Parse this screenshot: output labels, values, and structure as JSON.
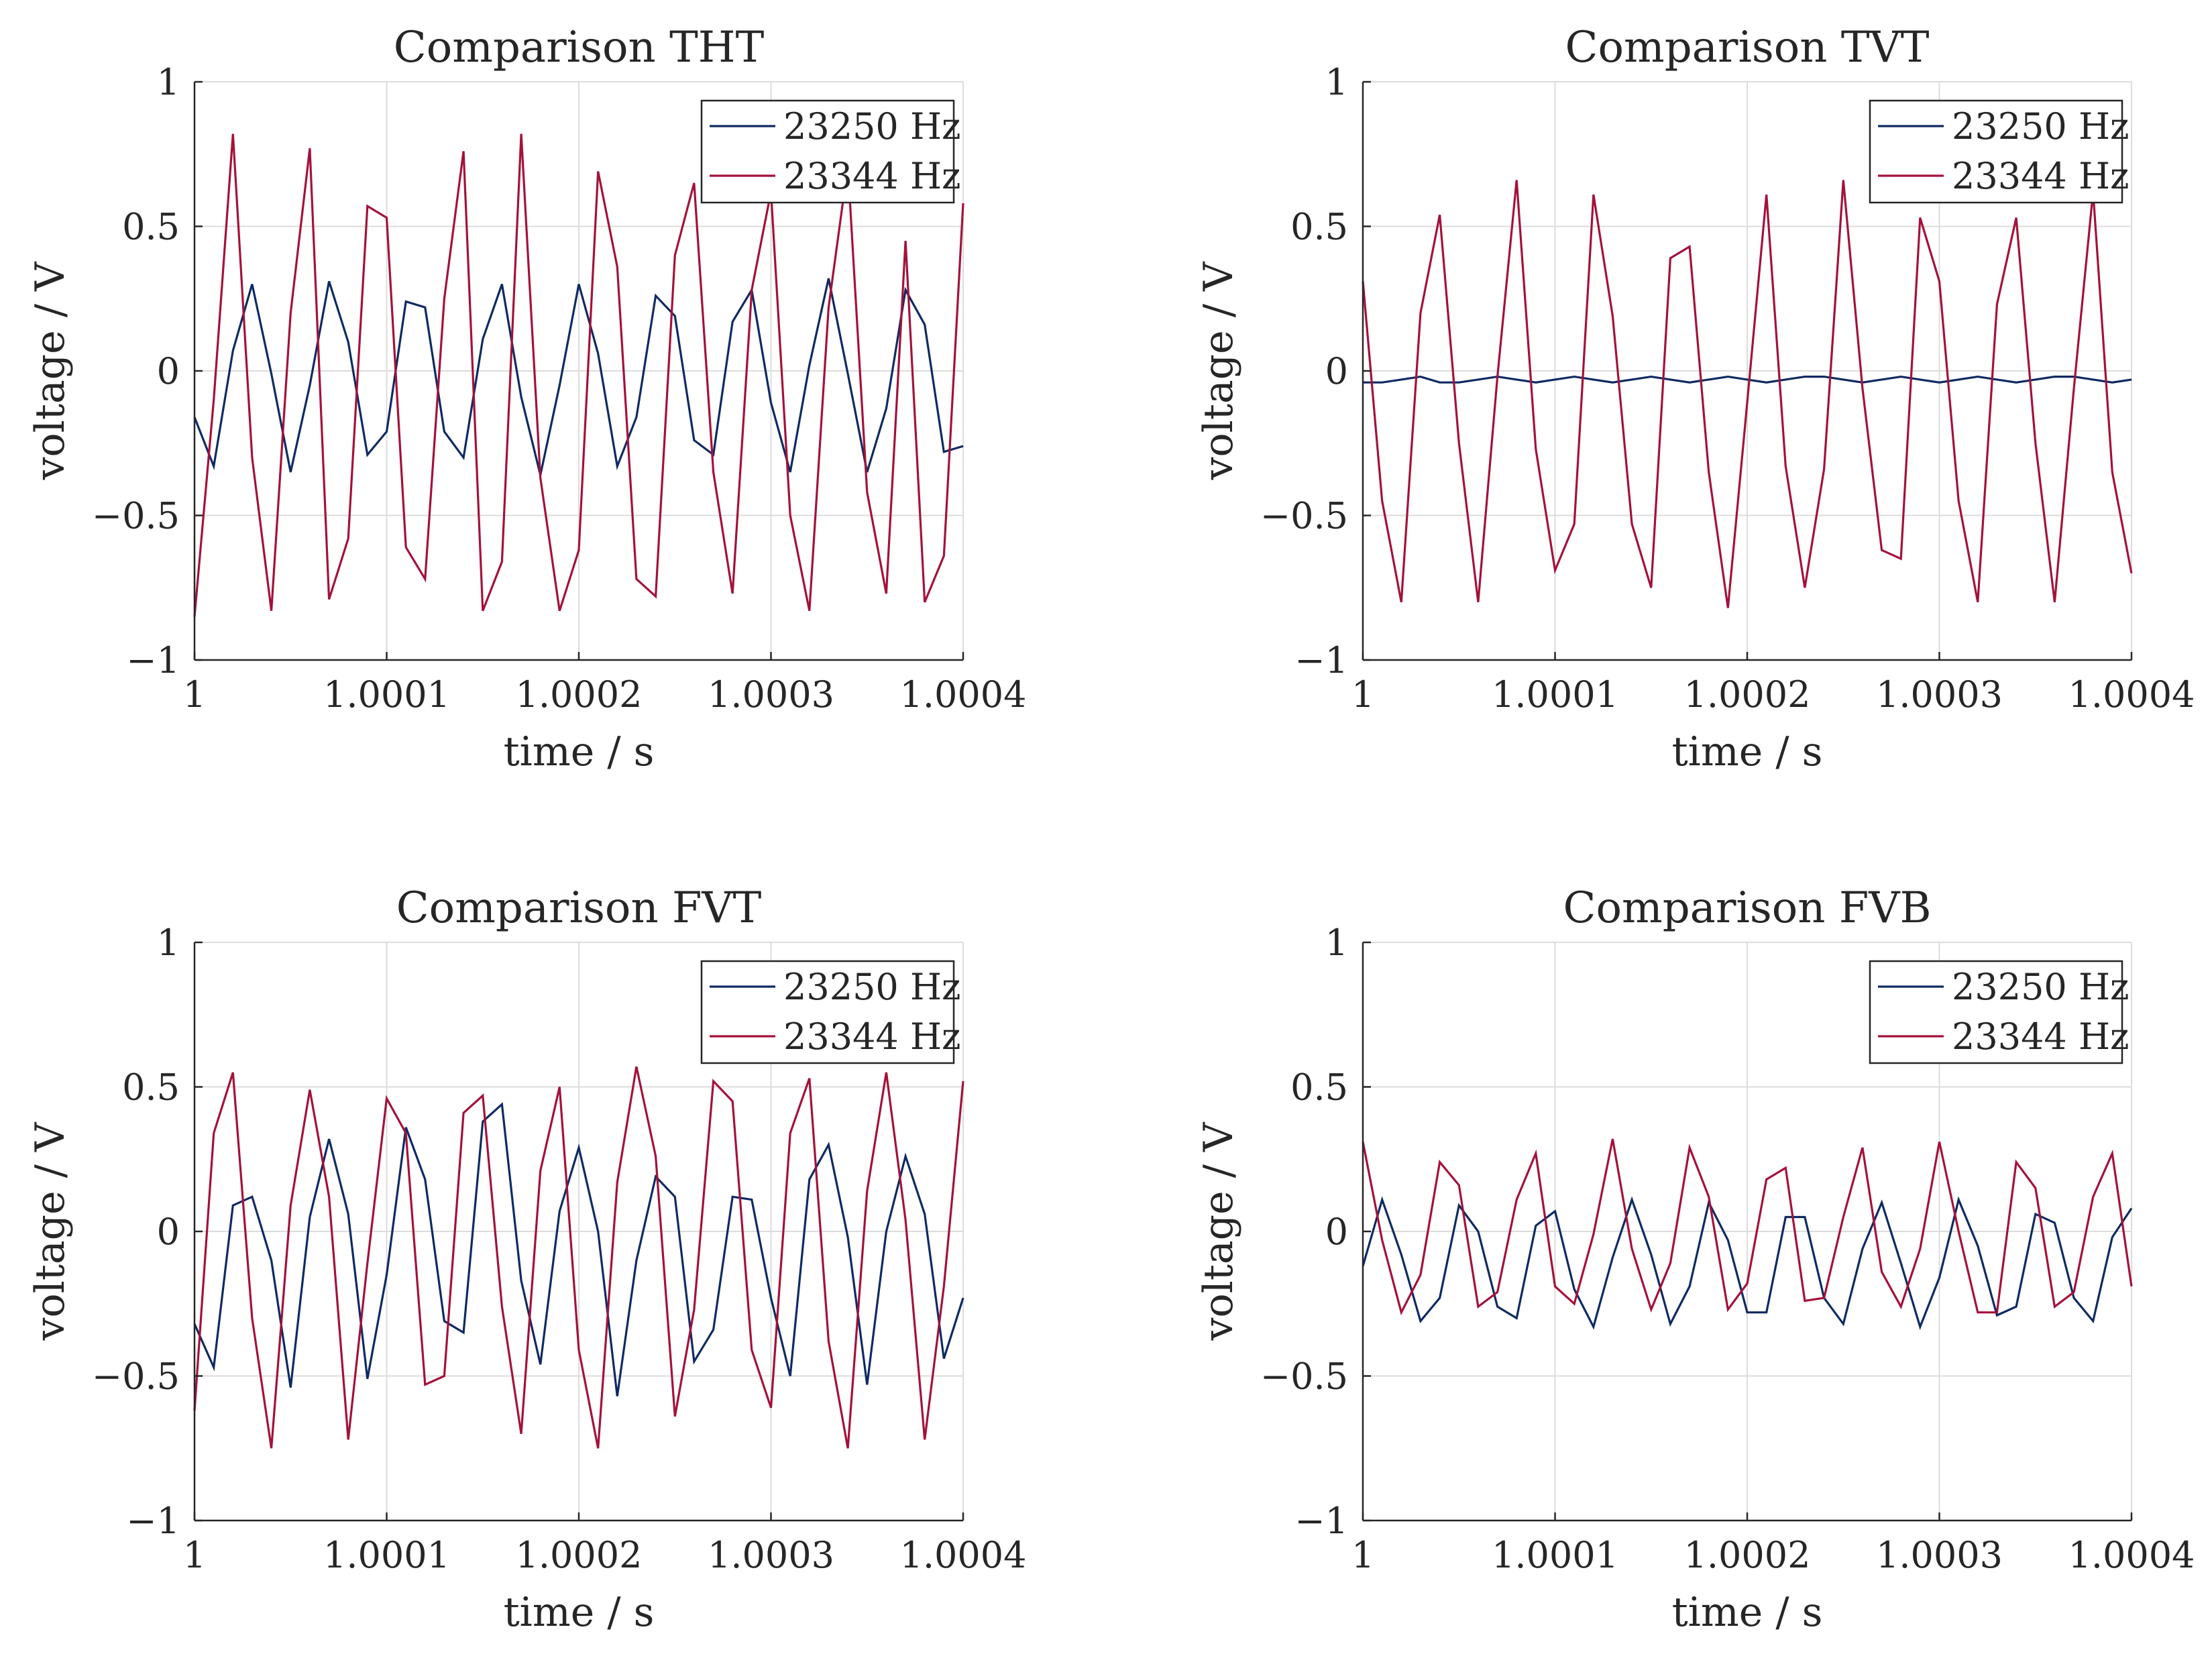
{
  "figure": {
    "colors": {
      "series1": "#0f2a63",
      "series2": "#a3123b",
      "grid": "#dcdcdc",
      "axis": "#262626"
    }
  },
  "chart_data": [
    {
      "type": "line",
      "title": "Comparison THT",
      "xlabel": "time  /  s",
      "ylabel": "voltage  /  V",
      "xlim": [
        1,
        1.0004
      ],
      "ylim": [
        -1,
        1
      ],
      "xticks": [
        1,
        1.0001,
        1.0002,
        1.0003,
        1.0004
      ],
      "xtick_labels": [
        "1",
        "1.0001",
        "1.0002",
        "1.0003",
        "1.0004"
      ],
      "yticks": [
        1,
        0.5,
        0,
        -0.5,
        -1
      ],
      "ytick_labels": [
        "1",
        "0.5",
        "0",
        "−0.5",
        "−1"
      ],
      "legend": [
        "23250 Hz",
        "23344 Hz"
      ],
      "legend_location": "top-right",
      "dt": 1e-05,
      "series": [
        {
          "name": "23250 Hz",
          "values": [
            -0.16,
            -0.33,
            0.07,
            0.3,
            -0.01,
            -0.35,
            -0.05,
            0.31,
            0.1,
            -0.29,
            -0.21,
            0.24,
            0.22,
            -0.21,
            -0.3,
            0.11,
            0.3,
            -0.09,
            -0.36,
            -0.05,
            0.3,
            0.06,
            -0.33,
            -0.16,
            0.26,
            0.19,
            -0.24,
            -0.29,
            0.17,
            0.28,
            -0.11,
            -0.35,
            0.02,
            0.32,
            -0.01,
            -0.35,
            -0.13,
            0.28,
            0.16,
            -0.28,
            -0.26
          ]
        },
        {
          "name": "23344 Hz",
          "values": [
            -0.85,
            -0.1,
            0.82,
            -0.3,
            -0.83,
            0.2,
            0.77,
            -0.79,
            -0.58,
            0.57,
            0.53,
            -0.61,
            -0.72,
            0.25,
            0.76,
            -0.83,
            -0.66,
            0.82,
            -0.37,
            -0.83,
            -0.62,
            0.69,
            0.36,
            -0.72,
            -0.78,
            0.4,
            0.65,
            -0.35,
            -0.77,
            0.28,
            0.62,
            -0.5,
            -0.83,
            0.22,
            0.71,
            -0.42,
            -0.77,
            0.45,
            -0.8,
            -0.64,
            0.58
          ]
        }
      ]
    },
    {
      "type": "line",
      "title": "Comparison TVT",
      "xlabel": "time  /  s",
      "ylabel": "voltage  /  V",
      "xlim": [
        1,
        1.0004
      ],
      "ylim": [
        -1,
        1
      ],
      "xticks": [
        1,
        1.0001,
        1.0002,
        1.0003,
        1.0004
      ],
      "xtick_labels": [
        "1",
        "1.0001",
        "1.0002",
        "1.0003",
        "1.0004"
      ],
      "yticks": [
        1,
        0.5,
        0,
        -0.5,
        -1
      ],
      "ytick_labels": [
        "1",
        "0.5",
        "0",
        "−0.5",
        "−1"
      ],
      "legend": [
        "23250 Hz",
        "23344 Hz"
      ],
      "legend_location": "top-right",
      "dt": 1e-05,
      "series": [
        {
          "name": "23250 Hz",
          "values": [
            -0.04,
            -0.04,
            -0.03,
            -0.02,
            -0.04,
            -0.04,
            -0.03,
            -0.02,
            -0.03,
            -0.04,
            -0.03,
            -0.02,
            -0.03,
            -0.04,
            -0.03,
            -0.02,
            -0.03,
            -0.04,
            -0.03,
            -0.02,
            -0.03,
            -0.04,
            -0.03,
            -0.02,
            -0.02,
            -0.03,
            -0.04,
            -0.03,
            -0.02,
            -0.03,
            -0.04,
            -0.03,
            -0.02,
            -0.03,
            -0.04,
            -0.03,
            -0.02,
            -0.02,
            -0.03,
            -0.04,
            -0.03
          ]
        },
        {
          "name": "23344 Hz",
          "values": [
            0.31,
            -0.45,
            -0.8,
            0.2,
            0.54,
            -0.25,
            -0.8,
            -0.02,
            0.66,
            -0.27,
            -0.69,
            -0.53,
            0.61,
            0.19,
            -0.53,
            -0.75,
            0.39,
            0.43,
            -0.35,
            -0.82,
            -0.11,
            0.61,
            -0.33,
            -0.75,
            -0.34,
            0.66,
            -0.06,
            -0.62,
            -0.65,
            0.53,
            0.31,
            -0.45,
            -0.8,
            0.23,
            0.53,
            -0.25,
            -0.8,
            -0.06,
            0.62,
            -0.35,
            -0.7
          ]
        }
      ]
    },
    {
      "type": "line",
      "title": "Comparison FVT",
      "xlabel": "time  /  s",
      "ylabel": "voltage  /  V",
      "xlim": [
        1,
        1.0004
      ],
      "ylim": [
        -1,
        1
      ],
      "xticks": [
        1,
        1.0001,
        1.0002,
        1.0003,
        1.0004
      ],
      "xtick_labels": [
        "1",
        "1.0001",
        "1.0002",
        "1.0003",
        "1.0004"
      ],
      "yticks": [
        1,
        0.5,
        0,
        -0.5,
        -1
      ],
      "ytick_labels": [
        "1",
        "0.5",
        "0",
        "−0.5",
        "−1"
      ],
      "legend": [
        "23250 Hz",
        "23344 Hz"
      ],
      "legend_location": "top-right",
      "dt": 1e-05,
      "series": [
        {
          "name": "23250 Hz",
          "values": [
            -0.32,
            -0.47,
            0.09,
            0.12,
            -0.1,
            -0.54,
            0.05,
            0.32,
            0.06,
            -0.51,
            -0.15,
            0.36,
            0.18,
            -0.31,
            -0.35,
            0.38,
            0.44,
            -0.17,
            -0.46,
            0.07,
            0.29,
            0.0,
            -0.57,
            -0.1,
            0.19,
            0.12,
            -0.45,
            -0.34,
            0.12,
            0.11,
            -0.23,
            -0.5,
            0.18,
            0.3,
            -0.02,
            -0.53,
            0.0,
            0.26,
            0.06,
            -0.44,
            -0.23
          ]
        },
        {
          "name": "23344 Hz",
          "values": [
            -0.62,
            0.34,
            0.55,
            -0.3,
            -0.75,
            0.09,
            0.49,
            0.12,
            -0.72,
            -0.11,
            0.46,
            0.34,
            -0.53,
            -0.5,
            0.41,
            0.47,
            -0.26,
            -0.7,
            0.21,
            0.5,
            -0.41,
            -0.75,
            0.17,
            0.57,
            0.26,
            -0.64,
            -0.27,
            0.52,
            0.45,
            -0.41,
            -0.61,
            0.34,
            0.53,
            -0.38,
            -0.75,
            0.14,
            0.55,
            0.04,
            -0.72,
            -0.19,
            0.52
          ]
        }
      ]
    },
    {
      "type": "line",
      "title": "Comparison FVB",
      "xlabel": "time  /  s",
      "ylabel": "voltage  /  V",
      "xlim": [
        1,
        1.0004
      ],
      "ylim": [
        -1,
        1
      ],
      "xticks": [
        1,
        1.0001,
        1.0002,
        1.0003,
        1.0004
      ],
      "xtick_labels": [
        "1",
        "1.0001",
        "1.0002",
        "1.0003",
        "1.0004"
      ],
      "yticks": [
        1,
        0.5,
        0,
        -0.5,
        -1
      ],
      "ytick_labels": [
        "1",
        "0.5",
        "0",
        "−0.5",
        "−1"
      ],
      "legend": [
        "23250 Hz",
        "23344 Hz"
      ],
      "legend_location": "top-right",
      "dt": 1e-05,
      "series": [
        {
          "name": "23250 Hz",
          "values": [
            -0.12,
            0.11,
            -0.08,
            -0.31,
            -0.23,
            0.09,
            0.0,
            -0.26,
            -0.3,
            0.02,
            0.07,
            -0.2,
            -0.33,
            -0.09,
            0.11,
            -0.08,
            -0.32,
            -0.19,
            0.1,
            -0.03,
            -0.28,
            -0.28,
            0.05,
            0.05,
            -0.23,
            -0.32,
            -0.06,
            0.1,
            -0.11,
            -0.33,
            -0.16,
            0.11,
            -0.05,
            -0.29,
            -0.26,
            0.06,
            0.03,
            -0.23,
            -0.31,
            -0.02,
            0.08
          ]
        },
        {
          "name": "23344 Hz",
          "values": [
            0.31,
            -0.03,
            -0.28,
            -0.15,
            0.24,
            0.16,
            -0.26,
            -0.21,
            0.11,
            0.27,
            -0.19,
            -0.25,
            -0.01,
            0.32,
            -0.06,
            -0.27,
            -0.11,
            0.29,
            0.12,
            -0.27,
            -0.18,
            0.18,
            0.22,
            -0.24,
            -0.23,
            0.05,
            0.29,
            -0.14,
            -0.26,
            -0.06,
            0.31,
            0.0,
            -0.28,
            -0.28,
            0.24,
            0.15,
            -0.26,
            -0.21,
            0.12,
            0.27,
            -0.19
          ]
        }
      ]
    }
  ]
}
